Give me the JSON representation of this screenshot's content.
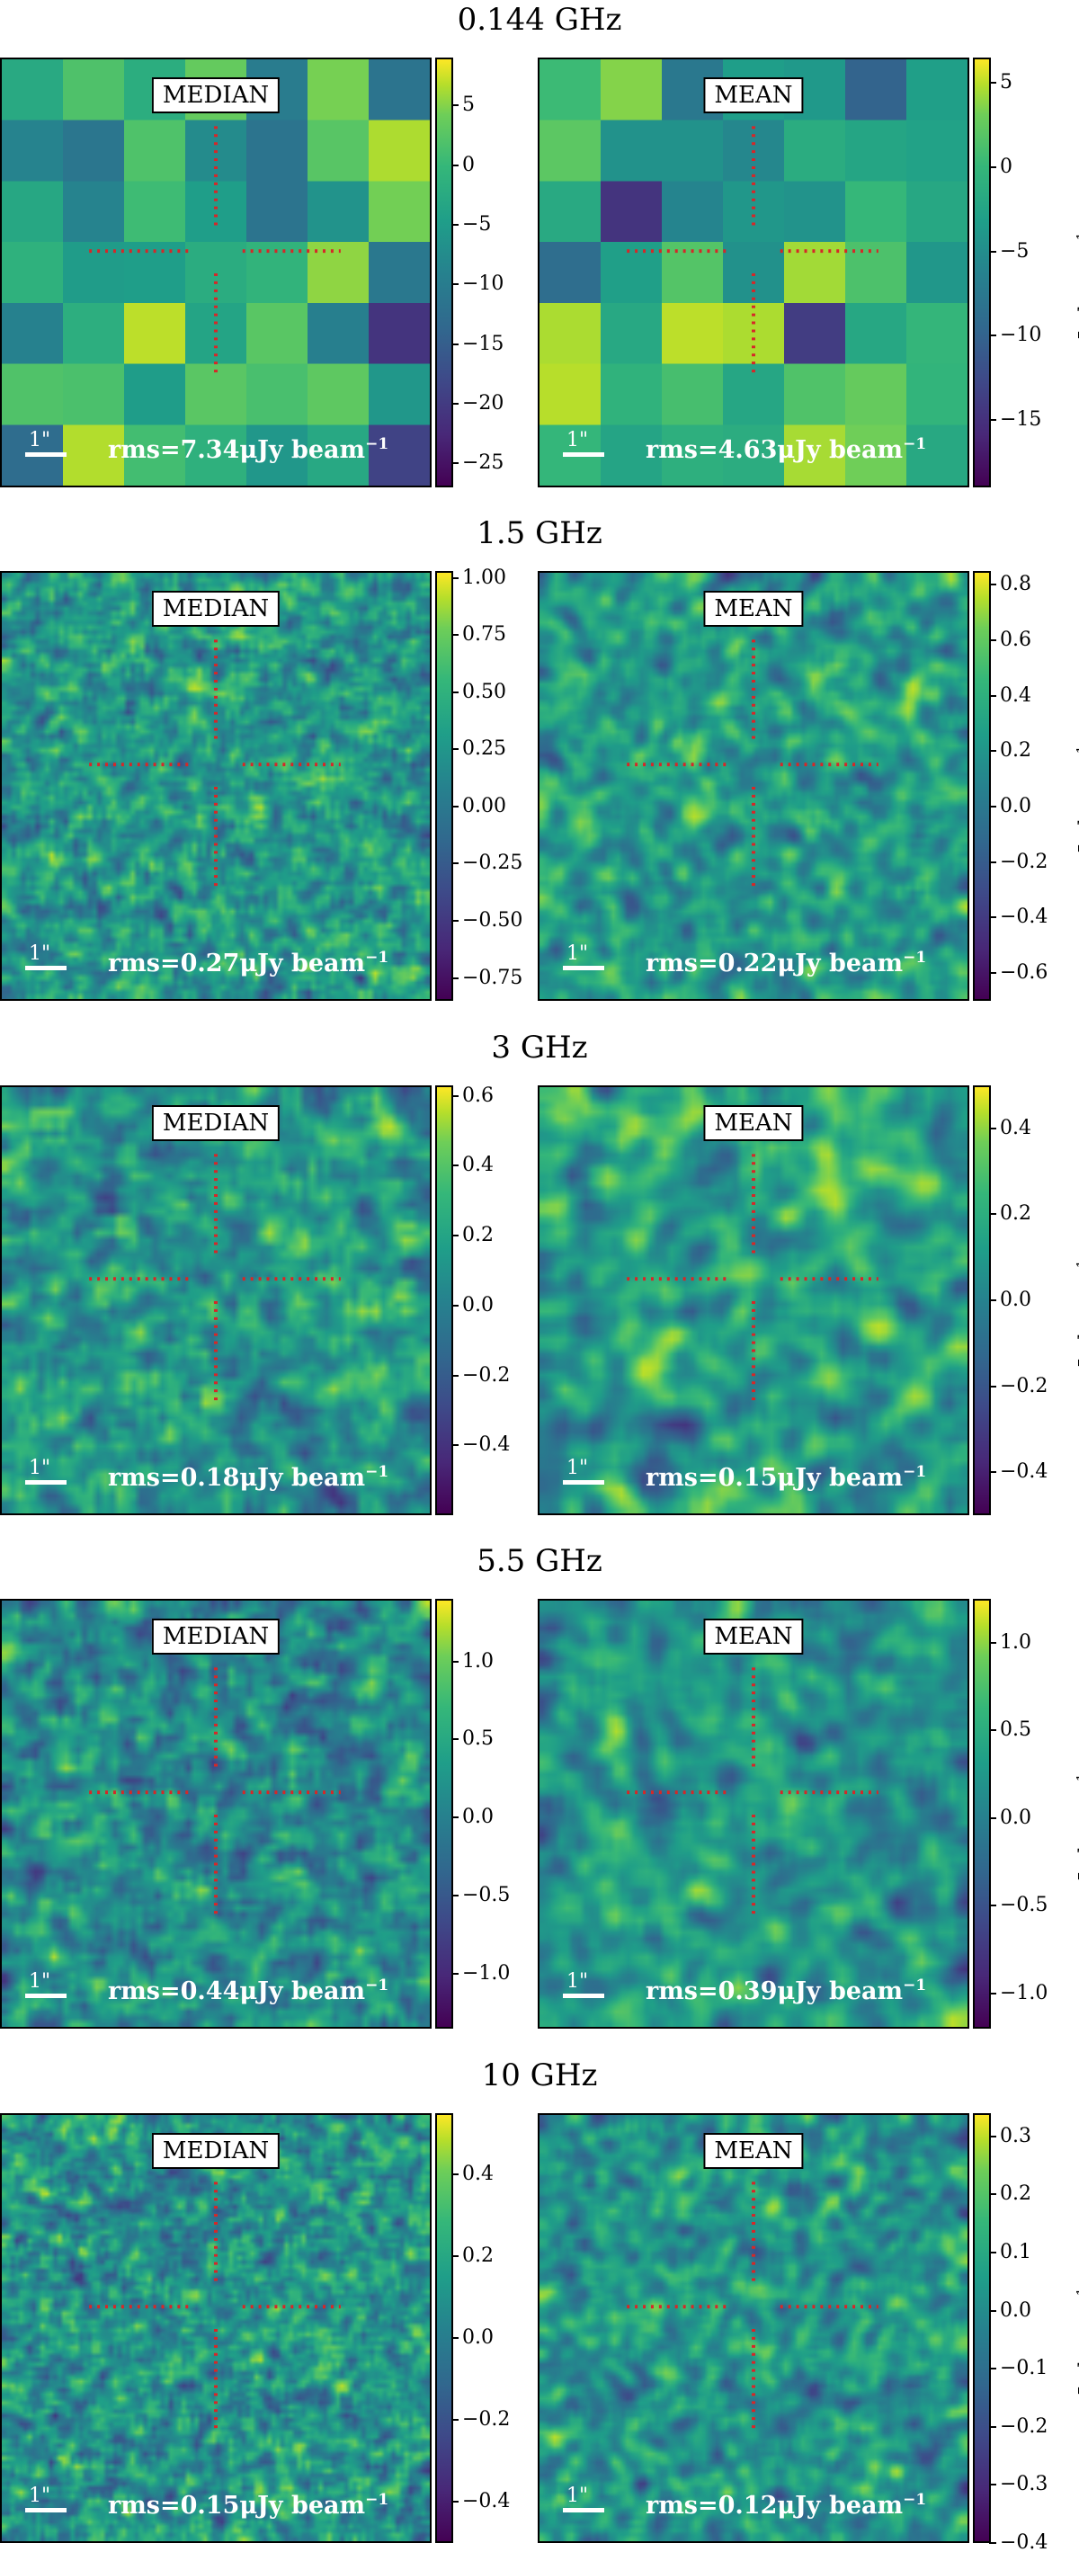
{
  "chart_data": [
    {
      "type": "heatmap",
      "title": "0.144 GHz",
      "unit_label": "μJy beam",
      "unit_exp": "−1",
      "scale_label": "1\"",
      "grid_cells": 7,
      "seed": 11,
      "panels": [
        {
          "label": "MEDIAN",
          "rms_text": "rms=7.34μJy beam",
          "rms_exp": "−1",
          "ticks": [
            "5",
            "0",
            "−5",
            "−10",
            "−15",
            "−20",
            "−25"
          ],
          "tick_values": [
            5,
            0,
            -5,
            -10,
            -15,
            -20,
            -25
          ],
          "range": [
            -27,
            9
          ]
        },
        {
          "label": "MEAN",
          "rms_text": "rms=4.63μJy beam",
          "rms_exp": "−1",
          "ticks": [
            "5",
            "0",
            "−5",
            "−10",
            "−15"
          ],
          "tick_values": [
            5,
            0,
            -5,
            -10,
            -15
          ],
          "range": [
            -19,
            6.5
          ]
        }
      ]
    },
    {
      "type": "heatmap",
      "title": "1.5 GHz",
      "unit_label": "μJy beam",
      "unit_exp": "−1",
      "scale_label": "1\"",
      "grid_cells": 90,
      "seed": 23,
      "panels": [
        {
          "label": "MEDIAN",
          "rms_text": "rms=0.27μJy beam",
          "rms_exp": "−1",
          "ticks": [
            "1.00",
            "0.75",
            "0.50",
            "0.25",
            "0.00",
            "−0.25",
            "−0.50",
            "−0.75"
          ],
          "tick_values": [
            1.0,
            0.75,
            0.5,
            0.25,
            0.0,
            -0.25,
            -0.5,
            -0.75
          ],
          "range": [
            -0.85,
            1.03
          ]
        },
        {
          "label": "MEAN",
          "rms_text": "rms=0.22μJy beam",
          "rms_exp": "−1",
          "ticks": [
            "0.8",
            "0.6",
            "0.4",
            "0.2",
            "0.0",
            "−0.2",
            "−0.4",
            "−0.6"
          ],
          "tick_values": [
            0.8,
            0.6,
            0.4,
            0.2,
            0.0,
            -0.2,
            -0.4,
            -0.6
          ],
          "range": [
            -0.7,
            0.85
          ]
        }
      ]
    },
    {
      "type": "heatmap",
      "title": "3 GHz",
      "unit_label": "μJy beam",
      "unit_exp": "−1",
      "scale_label": "1\"",
      "grid_cells": 60,
      "seed": 37,
      "panels": [
        {
          "label": "MEDIAN",
          "rms_text": "rms=0.18μJy beam",
          "rms_exp": "−1",
          "ticks": [
            "0.6",
            "0.4",
            "0.2",
            "0.0",
            "−0.2",
            "−0.4"
          ],
          "tick_values": [
            0.6,
            0.4,
            0.2,
            0.0,
            -0.2,
            -0.4
          ],
          "range": [
            -0.6,
            0.63
          ]
        },
        {
          "label": "MEAN",
          "rms_text": "rms=0.15μJy beam",
          "rms_exp": "−1",
          "ticks": [
            "0.4",
            "0.2",
            "0.0",
            "−0.2",
            "−0.4"
          ],
          "tick_values": [
            0.4,
            0.2,
            0.0,
            -0.2,
            -0.4
          ],
          "range": [
            -0.5,
            0.5
          ]
        }
      ]
    },
    {
      "type": "heatmap",
      "title": "5.5 GHz",
      "unit_label": "μJy beam",
      "unit_exp": "−1",
      "scale_label": "1\"",
      "grid_cells": 70,
      "seed": 53,
      "panels": [
        {
          "label": "MEDIAN",
          "rms_text": "rms=0.44μJy beam",
          "rms_exp": "−1",
          "ticks": [
            "1.0",
            "0.5",
            "0.0",
            "−0.5",
            "−1.0"
          ],
          "tick_values": [
            1.0,
            0.5,
            0.0,
            -0.5,
            -1.0
          ],
          "range": [
            -1.35,
            1.4
          ]
        },
        {
          "label": "MEAN",
          "rms_text": "rms=0.39μJy beam",
          "rms_exp": "−1",
          "ticks": [
            "1.0",
            "0.5",
            "0.0",
            "−0.5",
            "−1.0"
          ],
          "tick_values": [
            1.0,
            0.5,
            0.0,
            -0.5,
            -1.0
          ],
          "range": [
            -1.2,
            1.25
          ]
        }
      ]
    },
    {
      "type": "heatmap",
      "title": "10 GHz",
      "unit_label": "μJy beam",
      "unit_exp": "−1",
      "scale_label": "1\"",
      "grid_cells": 100,
      "seed": 71,
      "panels": [
        {
          "label": "MEDIAN",
          "rms_text": "rms=0.15μJy beam",
          "rms_exp": "−1",
          "ticks": [
            "0.4",
            "0.2",
            "0.0",
            "−0.2",
            "−0.4"
          ],
          "tick_values": [
            0.4,
            0.2,
            0.0,
            -0.2,
            -0.4
          ],
          "range": [
            -0.5,
            0.55
          ]
        },
        {
          "label": "MEAN",
          "rms_text": "rms=0.12μJy beam",
          "rms_exp": "−1",
          "ticks": [
            "0.3",
            "0.2",
            "0.1",
            "0.0",
            "−0.1",
            "−0.2",
            "−0.3",
            "−0.4"
          ],
          "tick_values": [
            0.3,
            0.2,
            0.1,
            0.0,
            -0.1,
            -0.2,
            -0.3,
            -0.4
          ],
          "range": [
            -0.4,
            0.34
          ]
        }
      ]
    }
  ]
}
